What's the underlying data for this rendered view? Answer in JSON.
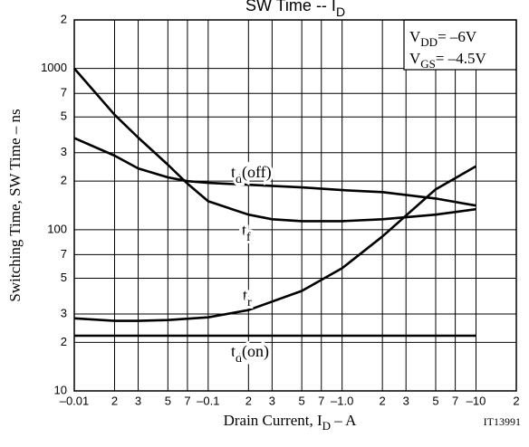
{
  "chart_data": {
    "type": "line",
    "title": [
      "SW Time  --  I",
      "D"
    ],
    "x_label": [
      "Drain Current, I",
      "D",
      "  –  A"
    ],
    "y_label": "Switching Time, SW Time  –  ns",
    "annotations": {
      "vdd": [
        "V",
        "DD",
        "= –6V"
      ],
      "vgs": [
        "V",
        "GS",
        "= –4.5V"
      ],
      "code": "IT13991"
    },
    "xscale": "log",
    "yscale": "log",
    "grid": true,
    "xlim": [
      -0.01,
      -20
    ],
    "ylim": [
      10,
      2000
    ],
    "xticks": [
      {
        "value": -0.01,
        "label": "–0.01"
      },
      {
        "value": -0.02,
        "label": "2"
      },
      {
        "value": -0.03,
        "label": "3"
      },
      {
        "value": -0.05,
        "label": "5"
      },
      {
        "value": -0.07,
        "label": "7"
      },
      {
        "value": -0.1,
        "label": "–0.1"
      },
      {
        "value": -0.2,
        "label": "2"
      },
      {
        "value": -0.3,
        "label": "3"
      },
      {
        "value": -0.5,
        "label": "5"
      },
      {
        "value": -0.7,
        "label": "7"
      },
      {
        "value": -1,
        "label": "–1.0"
      },
      {
        "value": -2,
        "label": "2"
      },
      {
        "value": -3,
        "label": "3"
      },
      {
        "value": -5,
        "label": "5"
      },
      {
        "value": -7,
        "label": "7"
      },
      {
        "value": -10,
        "label": "–10"
      },
      {
        "value": -20,
        "label": "2"
      }
    ],
    "yticks": [
      10,
      {
        "value": 20,
        "label": "2"
      },
      {
        "value": 30,
        "label": "3"
      },
      {
        "value": 50,
        "label": "5"
      },
      {
        "value": 70,
        "label": "7"
      },
      100,
      {
        "value": 200,
        "label": "2"
      },
      {
        "value": 300,
        "label": "3"
      },
      {
        "value": 500,
        "label": "5"
      },
      {
        "value": 700,
        "label": "7"
      },
      1000,
      {
        "value": 2000,
        "label": "2"
      }
    ],
    "series": [
      {
        "label": [
          "t",
          "d",
          "(off)"
        ],
        "color": "#000000",
        "x": [
          -0.01,
          -0.02,
          -0.03,
          -0.05,
          -0.07,
          -0.1,
          -0.2,
          -0.5,
          -1,
          -2,
          -5,
          -10
        ],
        "values": [
          370,
          288,
          240,
          211,
          200,
          195,
          190,
          183,
          176,
          171,
          156,
          141
        ]
      },
      {
        "label": [
          "t",
          "f",
          ""
        ],
        "color": "#000000",
        "x": [
          -0.01,
          -0.02,
          -0.03,
          -0.05,
          -0.07,
          -0.1,
          -0.2,
          -0.3,
          -0.5,
          -1,
          -2,
          -5,
          -10
        ],
        "values": [
          1000,
          516,
          373,
          253,
          193,
          150,
          124,
          116,
          113,
          113,
          116,
          124,
          134
        ]
      },
      {
        "label": [
          "t",
          "r",
          ""
        ],
        "color": "#000000",
        "x": [
          -0.01,
          -0.02,
          -0.03,
          -0.05,
          -0.1,
          -0.2,
          -0.5,
          -1,
          -2,
          -5,
          -10
        ],
        "values": [
          28.2,
          27.2,
          27.2,
          27.5,
          28.6,
          31.7,
          41.7,
          57.7,
          90.8,
          178,
          247
        ]
      },
      {
        "label": [
          "t",
          "d",
          "(on)"
        ],
        "color": "#000000",
        "x": [
          -0.01,
          -10
        ],
        "values": [
          22,
          22
        ]
      }
    ]
  }
}
